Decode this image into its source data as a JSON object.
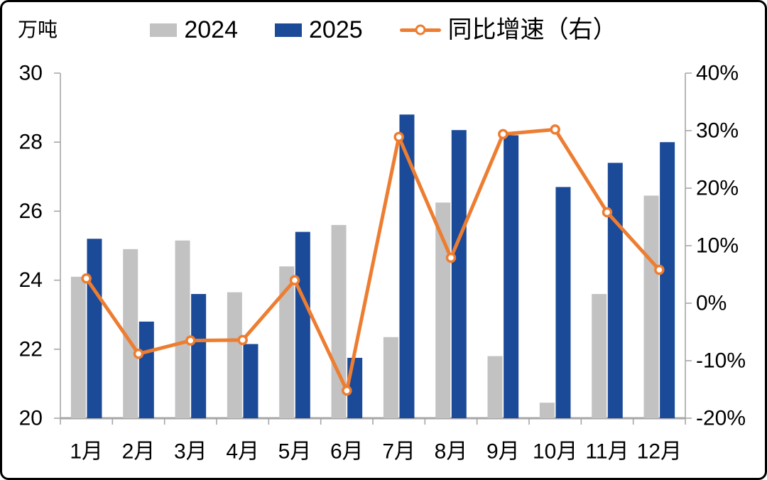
{
  "legend": {
    "items": [
      {
        "label": "2024",
        "color": "#C2C2C2"
      },
      {
        "label": "2025",
        "color": "#1B4A99"
      },
      {
        "label": "同比增速（右）",
        "color": "#ED7D31"
      }
    ]
  },
  "chart_data": {
    "type": "bar+line",
    "categories": [
      "1月",
      "2月",
      "3月",
      "4月",
      "5月",
      "6月",
      "7月",
      "8月",
      "9月",
      "10月",
      "11月",
      "12月"
    ],
    "series": [
      {
        "name": "2024",
        "type": "bar",
        "axis": "left",
        "color": "#C2C2C2",
        "values": [
          24.1,
          24.9,
          25.15,
          23.65,
          24.4,
          25.6,
          22.35,
          26.25,
          21.8,
          20.45,
          23.6,
          26.45
        ]
      },
      {
        "name": "2025",
        "type": "bar",
        "axis": "left",
        "color": "#1B4A99",
        "values": [
          25.2,
          22.8,
          23.6,
          22.15,
          25.4,
          21.75,
          28.8,
          28.35,
          28.2,
          26.7,
          27.4,
          28.0
        ]
      },
      {
        "name": "同比增速（右）",
        "type": "line",
        "axis": "right",
        "color": "#ED7D31",
        "values_pct": [
          4.3,
          -8.8,
          -6.5,
          -6.4,
          4.0,
          -15.2,
          28.9,
          7.9,
          29.4,
          30.2,
          15.8,
          5.8
        ]
      }
    ],
    "left_axis": {
      "title": "万吨",
      "min": 20,
      "max": 30,
      "tick_values": [
        30,
        28,
        26,
        24,
        22,
        20
      ],
      "tick_labels": [
        "30",
        "28",
        "26",
        "24",
        "22",
        "20"
      ]
    },
    "right_axis": {
      "min": -20,
      "max": 40,
      "tick_values": [
        40,
        30,
        20,
        10,
        0,
        -10,
        -20
      ],
      "tick_labels": [
        "40%",
        "30%",
        "20%",
        "10%",
        "0%",
        "-10%",
        "-20%"
      ]
    },
    "grid": false,
    "legend_position": "top-center"
  }
}
